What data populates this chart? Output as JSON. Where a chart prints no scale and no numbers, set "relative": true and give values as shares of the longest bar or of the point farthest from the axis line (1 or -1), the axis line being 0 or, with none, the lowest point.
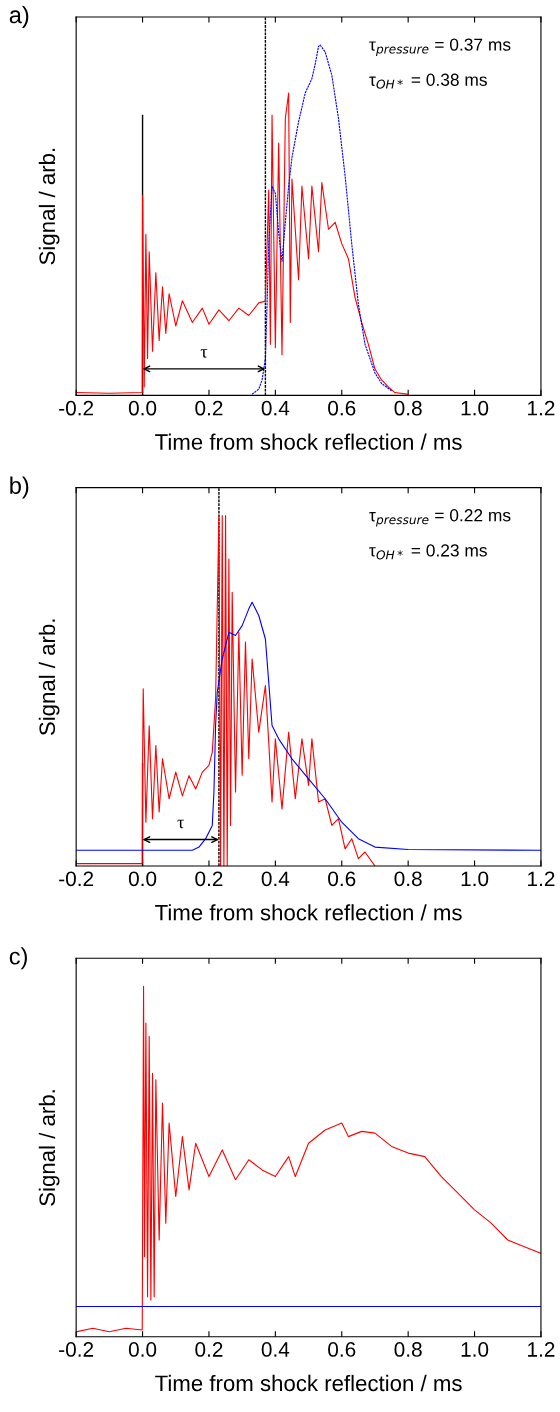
{
  "chart_data": [
    {
      "type": "line",
      "title": "a)",
      "xlabel": "Time from shock reflection / ms",
      "ylabel": "Signal / arb.",
      "relative": true,
      "tick_labels": "x",
      "grid": false,
      "xlim": [
        -0.2,
        1.2
      ],
      "xticks": [
        {
          "value": -0.2,
          "label": "-0.2"
        },
        {
          "value": 0.0,
          "label": "0.0"
        },
        {
          "value": 0.2,
          "label": "0.2"
        },
        {
          "value": 0.4,
          "label": "0.4"
        },
        {
          "value": 0.6,
          "label": "0.6"
        },
        {
          "value": 0.8,
          "label": "0.8"
        },
        {
          "value": 1.0,
          "label": "1.0"
        },
        {
          "value": 1.2,
          "label": "1.2"
        }
      ],
      "ref_lines": [
        {
          "axis": "x",
          "value": 0.37,
          "color": "#000000",
          "line_style": "dashed"
        },
        {
          "axis": "x",
          "value": 0.0,
          "color": "#000000",
          "line_style": "solid"
        }
      ],
      "annotations": [
        "τ$_{pressure}$ = 0.37 ms",
        "τ$_{OH*}$ = 0.38 ms",
        "τ"
      ],
      "series": [
        {
          "color": "#ff0000",
          "line_style": "solid",
          "x": [
            -0.2,
            -0.1,
            -0.001,
            0.0,
            0.005,
            0.01,
            0.015,
            0.02,
            0.03,
            0.04,
            0.05,
            0.06,
            0.07,
            0.08,
            0.1,
            0.12,
            0.15,
            0.18,
            0.2,
            0.23,
            0.26,
            0.29,
            0.32,
            0.35,
            0.37,
            0.38,
            0.385,
            0.39,
            0.4,
            0.41,
            0.42,
            0.43,
            0.44,
            0.445,
            0.45,
            0.47,
            0.48,
            0.5,
            0.51,
            0.53,
            0.54,
            0.56,
            0.58,
            0.6,
            0.62,
            0.64,
            0.66,
            0.68,
            0.7,
            0.72,
            0.74,
            0.76,
            0.8
          ],
          "values": [
            0.008,
            0.006,
            0.008,
            0.571,
            0.024,
            0.46,
            0.105,
            0.41,
            0.126,
            0.35,
            0.157,
            0.31,
            0.177,
            0.29,
            0.198,
            0.27,
            0.208,
            0.249,
            0.203,
            0.244,
            0.213,
            0.249,
            0.228,
            0.264,
            0.269,
            0.586,
            0.146,
            0.8,
            0.136,
            0.72,
            0.116,
            0.79,
            0.863,
            0.208,
            0.617,
            0.33,
            0.597,
            0.39,
            0.597,
            0.41,
            0.607,
            0.474,
            0.494,
            0.433,
            0.39,
            0.279,
            0.208,
            0.146,
            0.075,
            0.044,
            0.024,
            0.008,
            0.003
          ]
        },
        {
          "color": "#0000ff",
          "line_style": "dashed",
          "x": [
            0.33,
            0.35,
            0.36,
            0.37,
            0.375,
            0.38,
            0.39,
            0.4,
            0.41,
            0.42,
            0.43,
            0.44,
            0.45,
            0.47,
            0.49,
            0.51,
            0.52,
            0.53,
            0.535,
            0.55,
            0.57,
            0.59,
            0.61,
            0.63,
            0.65,
            0.67,
            0.7,
            0.72,
            0.75
          ],
          "values": [
            0.003,
            0.018,
            0.044,
            0.105,
            0.26,
            0.433,
            0.597,
            0.576,
            0.464,
            0.382,
            0.494,
            0.597,
            0.679,
            0.781,
            0.863,
            0.904,
            0.945,
            0.996,
            1.0,
            0.98,
            0.914,
            0.791,
            0.627,
            0.433,
            0.26,
            0.146,
            0.064,
            0.034,
            0.013
          ]
        }
      ]
    },
    {
      "type": "line",
      "title": "b)",
      "xlabel": "Time from shock reflection / ms",
      "ylabel": "Signal / arb.",
      "relative": true,
      "tick_labels": "x",
      "grid": false,
      "xlim": [
        -0.2,
        1.2
      ],
      "xticks": [
        {
          "value": -0.2,
          "label": "-0.2"
        },
        {
          "value": 0.0,
          "label": "0.0"
        },
        {
          "value": 0.2,
          "label": "0.2"
        },
        {
          "value": 0.4,
          "label": "0.4"
        },
        {
          "value": 0.6,
          "label": "0.6"
        },
        {
          "value": 0.8,
          "label": "0.8"
        },
        {
          "value": 1.0,
          "label": "1.0"
        },
        {
          "value": 1.2,
          "label": "1.2"
        }
      ],
      "ref_lines": [
        {
          "axis": "x",
          "value": 0.23,
          "color": "#000000",
          "line_style": "dashed"
        },
        {
          "axis": "x",
          "value": 0.0,
          "color": "#000000",
          "line_style": "solid"
        }
      ],
      "annotations": [
        "τ$_{pressure}$ = 0.22 ms",
        "τ$_{OH*}$ = 0.23 ms",
        "τ"
      ],
      "series": [
        {
          "color": "#ff0000",
          "line_style": "solid",
          "x": [
            -0.2,
            -0.001,
            0.0,
            0.002,
            0.01,
            0.02,
            0.03,
            0.04,
            0.05,
            0.06,
            0.08,
            0.1,
            0.12,
            0.14,
            0.16,
            0.18,
            0.2,
            0.21,
            0.22,
            0.23,
            0.235,
            0.24,
            0.245,
            0.25,
            0.255,
            0.26,
            0.265,
            0.27,
            0.28,
            0.29,
            0.3,
            0.31,
            0.32,
            0.33,
            0.35,
            0.37,
            0.38,
            0.39,
            0.4,
            0.42,
            0.44,
            0.46,
            0.48,
            0.5,
            0.51,
            0.53,
            0.55,
            0.57,
            0.59,
            0.61,
            0.63,
            0.65,
            0.67,
            0.7
          ],
          "values": [
            0.007,
            0.007,
            0.292,
            0.506,
            0.125,
            0.4,
            0.135,
            0.344,
            0.154,
            0.306,
            0.192,
            0.268,
            0.2,
            0.258,
            0.22,
            0.268,
            0.287,
            0.325,
            0.477,
            1.0,
            0.0,
            1.0,
            0.0,
            1.0,
            0.0,
            0.876,
            0.116,
            0.781,
            0.211,
            0.667,
            0.259,
            0.639,
            0.306,
            0.591,
            0.382,
            0.515,
            0.354,
            0.183,
            0.363,
            0.163,
            0.382,
            0.192,
            0.363,
            0.23,
            0.363,
            0.183,
            0.192,
            0.116,
            0.135,
            0.049,
            0.078,
            0.021,
            0.04,
            0.0
          ]
        },
        {
          "color": "#0000ff",
          "line_style": "solid",
          "x": [
            -0.2,
            0.15,
            0.17,
            0.19,
            0.21,
            0.215,
            0.22,
            0.225,
            0.24,
            0.26,
            0.28,
            0.3,
            0.32,
            0.33,
            0.35,
            0.37,
            0.39,
            0.41,
            0.45,
            0.5,
            0.55,
            0.6,
            0.65,
            0.7,
            0.8,
            1.2
          ],
          "values": [
            0.045,
            0.045,
            0.054,
            0.078,
            0.116,
            0.211,
            0.401,
            0.496,
            0.591,
            0.667,
            0.658,
            0.686,
            0.734,
            0.753,
            0.715,
            0.648,
            0.401,
            0.363,
            0.306,
            0.249,
            0.192,
            0.125,
            0.078,
            0.054,
            0.047,
            0.045
          ]
        }
      ]
    },
    {
      "type": "line",
      "title": "c)",
      "xlabel": "Time from shock reflection / ms",
      "ylabel": "Signal / arb.",
      "relative": true,
      "tick_labels": "x",
      "grid": false,
      "xlim": [
        -0.2,
        1.2
      ],
      "xticks": [
        {
          "value": -0.2,
          "label": "-0.2"
        },
        {
          "value": 0.0,
          "label": "0.0"
        },
        {
          "value": 0.2,
          "label": "0.2"
        },
        {
          "value": 0.4,
          "label": "0.4"
        },
        {
          "value": 0.6,
          "label": "0.6"
        },
        {
          "value": 0.8,
          "label": "0.8"
        },
        {
          "value": 1.0,
          "label": "1.0"
        },
        {
          "value": 1.2,
          "label": "1.2"
        }
      ],
      "series": [
        {
          "color": "#ff0000",
          "line_style": "solid",
          "x": [
            -0.2,
            -0.15,
            -0.1,
            -0.05,
            -0.001,
            0.003,
            0.006,
            0.01,
            0.015,
            0.02,
            0.025,
            0.03,
            0.035,
            0.04,
            0.05,
            0.06,
            0.07,
            0.08,
            0.1,
            0.12,
            0.14,
            0.16,
            0.2,
            0.24,
            0.28,
            0.32,
            0.36,
            0.4,
            0.44,
            0.46,
            0.5,
            0.55,
            0.6,
            0.62,
            0.66,
            0.7,
            0.75,
            0.8,
            0.85,
            0.9,
            0.95,
            1.0,
            1.05,
            1.1,
            1.15,
            1.2
          ],
          "values": [
            0.014,
            0.024,
            0.014,
            0.024,
            0.019,
            1.0,
            0.229,
            0.895,
            0.114,
            0.857,
            0.105,
            0.752,
            0.114,
            0.733,
            0.276,
            0.667,
            0.324,
            0.61,
            0.4,
            0.571,
            0.419,
            0.552,
            0.457,
            0.533,
            0.448,
            0.505,
            0.476,
            0.457,
            0.514,
            0.457,
            0.552,
            0.59,
            0.61,
            0.571,
            0.586,
            0.581,
            0.543,
            0.524,
            0.514,
            0.457,
            0.41,
            0.362,
            0.324,
            0.276,
            0.257,
            0.238
          ]
        },
        {
          "color": "#0000ff",
          "line_style": "solid",
          "x": [
            -0.2,
            1.2
          ],
          "values": [
            0.086,
            0.086
          ]
        }
      ]
    }
  ]
}
